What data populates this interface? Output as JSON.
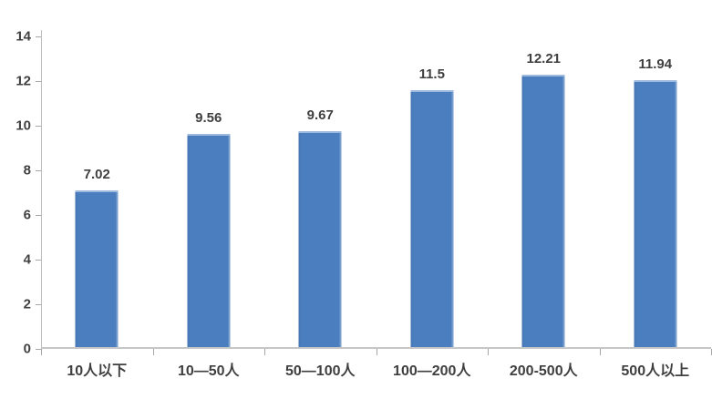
{
  "chart_data": {
    "type": "bar",
    "title": "",
    "categories": [
      "10人以下",
      "10—50人",
      "50—100人",
      "100—200人",
      "200-500人",
      "500人以上"
    ],
    "values": [
      7.02,
      9.56,
      9.67,
      11.5,
      12.21,
      11.94
    ],
    "value_labels": [
      "7.02",
      "9.56",
      "9.67",
      "11.5",
      "12.21",
      "11.94"
    ],
    "series_name": "",
    "xlabel": "",
    "ylabel": "",
    "ylim": [
      0,
      14
    ],
    "yticks": [
      0,
      2,
      4,
      6,
      8,
      10,
      12,
      14
    ],
    "grid": false,
    "legend_position": "none",
    "bar_color": "#4b7ebe",
    "bar_top_edge_color": "#9db9de",
    "axis_color": "#bfbfbf",
    "text_color": "#3f3f3f"
  }
}
